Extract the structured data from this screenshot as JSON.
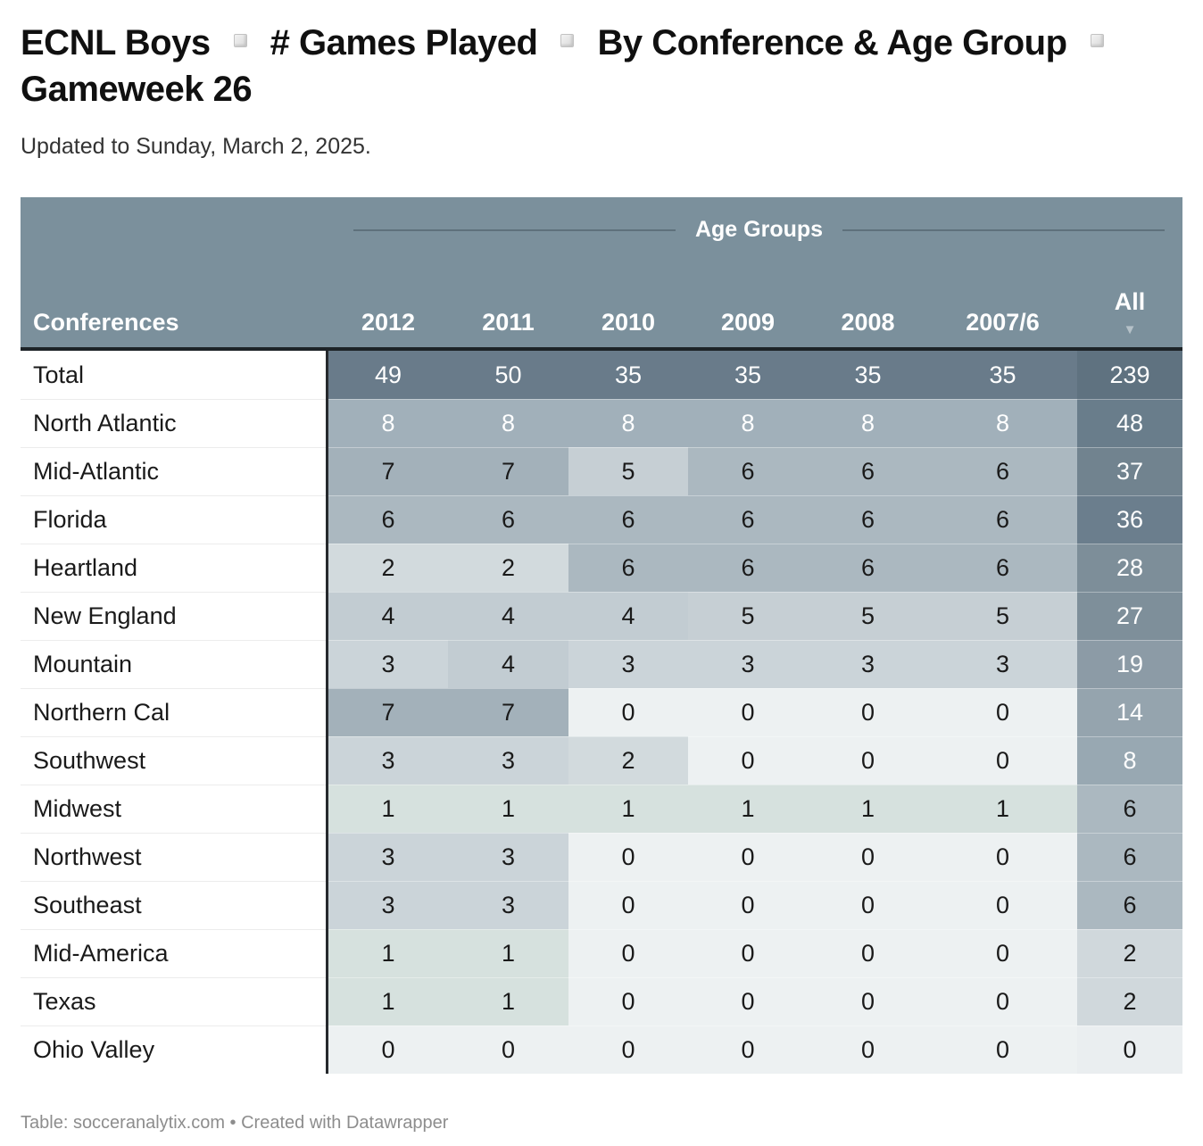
{
  "title": {
    "segments": [
      "ECNL Boys",
      "# Games Played",
      "By Conference & Age Group",
      "Gameweek 26"
    ]
  },
  "subtitle": "Updated to Sunday, March 2, 2025.",
  "table": {
    "group_header": "Age Groups",
    "first_column": "Conferences",
    "all_column": "All",
    "sort_icon": "▼"
  },
  "footer": {
    "label": "Table: ",
    "source": "socceranalytix.com",
    "middle": " • Created with ",
    "credit": "Datawrapper"
  },
  "colors": {
    "header_bg": "#7b909c",
    "header_line": "#5e717c",
    "header_border_bottom": "#1d2327",
    "column_divider": "#26292d",
    "total_bg": "#697b8a",
    "total_all_bg": "#5f7280",
    "text_dark": "#1a1a1a",
    "text_light": "#ffffff",
    "body_scale": {
      "0": {
        "bg": "#edf1f2",
        "fg": "#1a1a1a"
      },
      "1": {
        "bg": "#d6e1de",
        "fg": "#1a1a1a"
      },
      "2": {
        "bg": "#d2dadd",
        "fg": "#1a1a1a"
      },
      "3": {
        "bg": "#cbd4d9",
        "fg": "#1a1a1a"
      },
      "4": {
        "bg": "#c2ccd2",
        "fg": "#1a1a1a"
      },
      "5": {
        "bg": "#c6cfd4",
        "fg": "#1a1a1a"
      },
      "6": {
        "bg": "#abb8c0",
        "fg": "#1a1a1a"
      },
      "7": {
        "bg": "#a3b1ba",
        "fg": "#1a1a1a"
      },
      "8": {
        "bg": "#a1b0ba",
        "fg": "#ffffff"
      }
    },
    "all_scale": {
      "0": {
        "bg": "#eaeef0",
        "fg": "#1a1a1a"
      },
      "2": {
        "bg": "#d0d8dc",
        "fg": "#1a1a1a"
      },
      "6": {
        "bg": "#abb8c0",
        "fg": "#1a1a1a"
      },
      "8": {
        "bg": "#98a8b2",
        "fg": "#ffffff"
      },
      "14": {
        "bg": "#95a4ae",
        "fg": "#ffffff"
      },
      "19": {
        "bg": "#8c9ba6",
        "fg": "#ffffff"
      },
      "27": {
        "bg": "#7e8f9a",
        "fg": "#ffffff"
      },
      "28": {
        "bg": "#7d8e99",
        "fg": "#ffffff"
      },
      "36": {
        "bg": "#6b7e8d",
        "fg": "#ffffff"
      },
      "37": {
        "bg": "#71838f",
        "fg": "#ffffff"
      },
      "48": {
        "bg": "#697d8b",
        "fg": "#ffffff"
      },
      "239": {
        "bg": "#5f7280",
        "fg": "#ffffff"
      }
    }
  },
  "chart_data": {
    "type": "table",
    "title": "ECNL Boys # Games Played By Conference & Age Group Gameweek 26",
    "subtitle": "Updated to Sunday, March 2, 2025.",
    "group_header": "Age Groups",
    "age_columns": [
      "2012",
      "2011",
      "2010",
      "2009",
      "2008",
      "2007/6"
    ],
    "all_column": "All",
    "sorted_by": "All descending",
    "rows": [
      {
        "name": "Total",
        "values": [
          49,
          50,
          35,
          35,
          35,
          35
        ],
        "all": 239,
        "total": true
      },
      {
        "name": "North Atlantic",
        "values": [
          8,
          8,
          8,
          8,
          8,
          8
        ],
        "all": 48
      },
      {
        "name": "Mid-Atlantic",
        "values": [
          7,
          7,
          5,
          6,
          6,
          6
        ],
        "all": 37
      },
      {
        "name": "Florida",
        "values": [
          6,
          6,
          6,
          6,
          6,
          6
        ],
        "all": 36
      },
      {
        "name": "Heartland",
        "values": [
          2,
          2,
          6,
          6,
          6,
          6
        ],
        "all": 28
      },
      {
        "name": "New England",
        "values": [
          4,
          4,
          4,
          5,
          5,
          5
        ],
        "all": 27
      },
      {
        "name": "Mountain",
        "values": [
          3,
          4,
          3,
          3,
          3,
          3
        ],
        "all": 19
      },
      {
        "name": "Northern Cal",
        "values": [
          7,
          7,
          0,
          0,
          0,
          0
        ],
        "all": 14
      },
      {
        "name": "Southwest",
        "values": [
          3,
          3,
          2,
          0,
          0,
          0
        ],
        "all": 8
      },
      {
        "name": "Midwest",
        "values": [
          1,
          1,
          1,
          1,
          1,
          1
        ],
        "all": 6
      },
      {
        "name": "Northwest",
        "values": [
          3,
          3,
          0,
          0,
          0,
          0
        ],
        "all": 6
      },
      {
        "name": "Southeast",
        "values": [
          3,
          3,
          0,
          0,
          0,
          0
        ],
        "all": 6
      },
      {
        "name": "Mid-America",
        "values": [
          1,
          1,
          0,
          0,
          0,
          0
        ],
        "all": 2
      },
      {
        "name": "Texas",
        "values": [
          1,
          1,
          0,
          0,
          0,
          0
        ],
        "all": 2
      },
      {
        "name": "Ohio Valley",
        "values": [
          0,
          0,
          0,
          0,
          0,
          0
        ],
        "all": 0
      }
    ]
  }
}
